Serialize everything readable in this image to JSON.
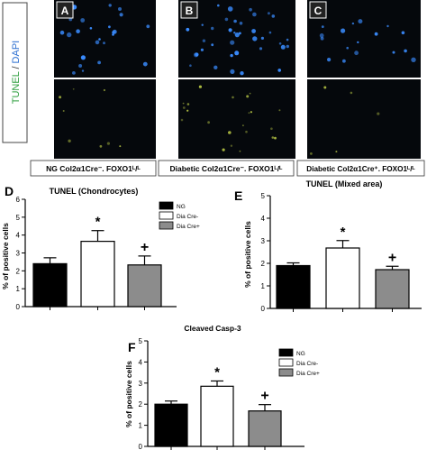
{
  "stain_label": {
    "tunel": "TUNEL",
    "slash": " / ",
    "dapi": "DAPI"
  },
  "panels": [
    {
      "letter": "A",
      "caption": "NG Col2α1Cre⁻. FOXO1ᴸ/ᴸ"
    },
    {
      "letter": "B",
      "caption": "Diabetic Col2α1Cre⁻. FOXO1ᴸ/ᴸ"
    },
    {
      "letter": "C",
      "caption": "Diabetic Col2α1Cre⁺. FOXO1ᴸ/ᴸ"
    }
  ],
  "colors": {
    "ng": "#000000",
    "dia_cre_minus": "#ffffff",
    "dia_cre_plus": "#8c8c8c",
    "tunel_green": "#2e9e3e",
    "dapi_blue": "#2c6fd1",
    "nuclei_blue": "#3a8cff",
    "apoptotic_yellow": "#c8d84a",
    "micrograph_bg": "#05080c"
  },
  "chart_data": [
    {
      "letter": "D",
      "type": "bar",
      "title": "TUNEL (Chondrocytes)",
      "ylabel": "% of positive cells",
      "ylim": [
        0,
        6
      ],
      "yticks": [
        "0",
        "1",
        "2",
        "3",
        "4",
        "5",
        "6"
      ],
      "categories": [
        "NG",
        "Dia Cre-",
        "Dia Cre+"
      ],
      "values": [
        2.4,
        3.65,
        2.33
      ],
      "errors": [
        0.33,
        0.6,
        0.5
      ],
      "annotations": [
        "",
        "*",
        "+"
      ],
      "legend": [
        "NG",
        "Dia Cre-",
        "Dia Cre+"
      ],
      "legend_position": "top-right"
    },
    {
      "letter": "E",
      "type": "bar",
      "title": "TUNEL (Mixed area)",
      "ylabel": "% of positive cells",
      "ylim": [
        0,
        5
      ],
      "yticks": [
        "0",
        "1",
        "2",
        "3",
        "4",
        "5"
      ],
      "categories": [
        "NG",
        "Dia Cre-",
        "Dia Cre+"
      ],
      "values": [
        1.9,
        2.68,
        1.72
      ],
      "errors": [
        0.12,
        0.33,
        0.15
      ],
      "annotations": [
        "",
        "*",
        "+"
      ]
    },
    {
      "letter": "F",
      "type": "bar",
      "title": "Cleaved Casp-3",
      "ylabel": "% of positive cells",
      "ylim": [
        0,
        5
      ],
      "yticks": [
        "0",
        "1",
        "2",
        "3",
        "4",
        "5"
      ],
      "categories": [
        "NG",
        "Dia Cre-",
        "Dia Cre+"
      ],
      "values": [
        2.0,
        2.85,
        1.68
      ],
      "errors": [
        0.15,
        0.25,
        0.3
      ],
      "annotations": [
        "",
        "*",
        "+"
      ],
      "legend": [
        "NG",
        "Dia Cre-",
        "Dia Cre+"
      ],
      "legend_position": "top-right"
    }
  ]
}
